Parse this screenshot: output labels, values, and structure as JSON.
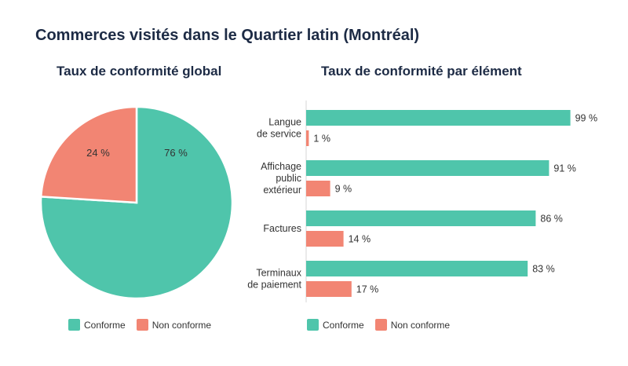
{
  "title": "Commerces visités dans le Quartier latin (Montréal)",
  "colors": {
    "conforme": "#4fc5ab",
    "non_conforme": "#f28573"
  },
  "chart_data": [
    {
      "type": "pie",
      "title": "Taux de conformité global",
      "slices": [
        {
          "label": "Conforme",
          "value": 76,
          "value_label": "76 %"
        },
        {
          "label": "Non conforme",
          "value": 24,
          "value_label": "24 %"
        }
      ],
      "legend": [
        "Conforme",
        "Non conforme"
      ],
      "legend_position": "bottom"
    },
    {
      "type": "bar",
      "orientation": "horizontal",
      "title": "Taux de conformité par élément",
      "categories": [
        [
          "Langue",
          "de service"
        ],
        [
          "Affichage",
          "public",
          "extérieur"
        ],
        [
          "Factures"
        ],
        [
          "Terminaux",
          "de paiement"
        ]
      ],
      "series": [
        {
          "name": "Conforme",
          "values": [
            99,
            91,
            86,
            83
          ],
          "labels": [
            "99 %",
            "91 %",
            "86 %",
            "83 %"
          ]
        },
        {
          "name": "Non conforme",
          "values": [
            1,
            9,
            14,
            17
          ],
          "labels": [
            "1 %",
            "9 %",
            "14 %",
            "17 %"
          ]
        }
      ],
      "xlim": [
        0,
        100
      ],
      "legend_position": "bottom"
    }
  ]
}
